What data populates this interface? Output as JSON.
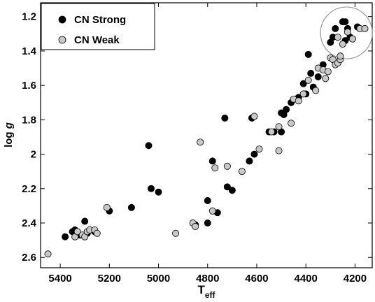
{
  "chart_data": {
    "type": "scatter",
    "xlabel": {
      "main": "T",
      "sub": "eff"
    },
    "ylabel": {
      "main": "log ",
      "italic": "g"
    },
    "xlim": [
      5480,
      4130
    ],
    "ylim": [
      1.12,
      2.66
    ],
    "x_inverted": true,
    "y_inverted": true,
    "xticks": [
      5400,
      5200,
      5000,
      4800,
      4600,
      4400,
      4200
    ],
    "yticks": [
      1.2,
      1.4,
      1.6,
      1.8,
      2.0,
      2.2,
      2.4,
      2.6
    ],
    "ytick_labels": [
      "1.2",
      "1.4",
      "1.6",
      "1.8",
      "2",
      "2.2",
      "2.4",
      "2.6"
    ],
    "grid": false,
    "legend_position": "top-left",
    "highlight_circle": {
      "x": 4235,
      "y": 1.295
    },
    "series": [
      {
        "name": "CN Strong",
        "color": "#000000",
        "points": [
          [
            5380,
            2.48
          ],
          [
            5350,
            2.45
          ],
          [
            5340,
            2.44
          ],
          [
            5330,
            2.46
          ],
          [
            5320,
            2.47
          ],
          [
            5300,
            2.39
          ],
          [
            5290,
            2.46
          ],
          [
            5260,
            2.45
          ],
          [
            5200,
            2.33
          ],
          [
            5110,
            2.31
          ],
          [
            5040,
            1.95
          ],
          [
            5030,
            2.2
          ],
          [
            5000,
            2.22
          ],
          [
            4850,
            2.41
          ],
          [
            4800,
            2.27
          ],
          [
            4800,
            2.4
          ],
          [
            4780,
            2.04
          ],
          [
            4760,
            2.34
          ],
          [
            4730,
            1.79
          ],
          [
            4720,
            2.19
          ],
          [
            4700,
            2.21
          ],
          [
            4630,
            2.04
          ],
          [
            4620,
            1.79
          ],
          [
            4610,
            2.0
          ],
          [
            4550,
            1.87
          ],
          [
            4530,
            1.87
          ],
          [
            4500,
            1.87
          ],
          [
            4500,
            1.76
          ],
          [
            4490,
            1.77
          ],
          [
            4480,
            1.74
          ],
          [
            4460,
            1.7
          ],
          [
            4430,
            1.67
          ],
          [
            4400,
            1.65
          ],
          [
            4410,
            1.59
          ],
          [
            4390,
            1.42
          ],
          [
            4380,
            1.53
          ],
          [
            4370,
            1.61
          ],
          [
            4350,
            1.55
          ],
          [
            4330,
            1.48
          ],
          [
            4300,
            1.35
          ],
          [
            4290,
            1.32
          ],
          [
            4280,
            1.27
          ],
          [
            4250,
            1.23
          ],
          [
            4240,
            1.23
          ],
          [
            4230,
            1.27
          ],
          [
            4240,
            1.34
          ],
          [
            4220,
            1.32
          ],
          [
            4190,
            1.26
          ]
        ]
      },
      {
        "name": "CN Weak",
        "color": "#c8c8c8",
        "points": [
          [
            5450,
            2.58
          ],
          [
            5340,
            2.48
          ],
          [
            5330,
            2.45
          ],
          [
            5310,
            2.47
          ],
          [
            5300,
            2.48
          ],
          [
            5290,
            2.45
          ],
          [
            5280,
            2.44
          ],
          [
            5260,
            2.44
          ],
          [
            5250,
            2.46
          ],
          [
            5210,
            2.31
          ],
          [
            4930,
            2.46
          ],
          [
            4860,
            2.4
          ],
          [
            4850,
            2.42
          ],
          [
            4830,
            1.93
          ],
          [
            4780,
            2.33
          ],
          [
            4770,
            2.08
          ],
          [
            4720,
            2.07
          ],
          [
            4660,
            2.1
          ],
          [
            4610,
            1.78
          ],
          [
            4590,
            1.97
          ],
          [
            4540,
            1.87
          ],
          [
            4510,
            1.84
          ],
          [
            4510,
            1.98
          ],
          [
            4460,
            1.82
          ],
          [
            4450,
            1.68
          ],
          [
            4430,
            1.69
          ],
          [
            4410,
            1.65
          ],
          [
            4390,
            1.57
          ],
          [
            4360,
            1.63
          ],
          [
            4350,
            1.5
          ],
          [
            4330,
            1.51
          ],
          [
            4320,
            1.56
          ],
          [
            4310,
            1.52
          ],
          [
            4300,
            1.44
          ],
          [
            4290,
            1.45
          ],
          [
            4280,
            1.48
          ],
          [
            4270,
            1.47
          ],
          [
            4260,
            1.45
          ],
          [
            4260,
            1.43
          ],
          [
            4250,
            1.36
          ],
          [
            4230,
            1.29
          ],
          [
            4210,
            1.33
          ],
          [
            4180,
            1.27
          ],
          [
            4160,
            1.27
          ],
          [
            4270,
            1.32
          ]
        ]
      }
    ]
  }
}
